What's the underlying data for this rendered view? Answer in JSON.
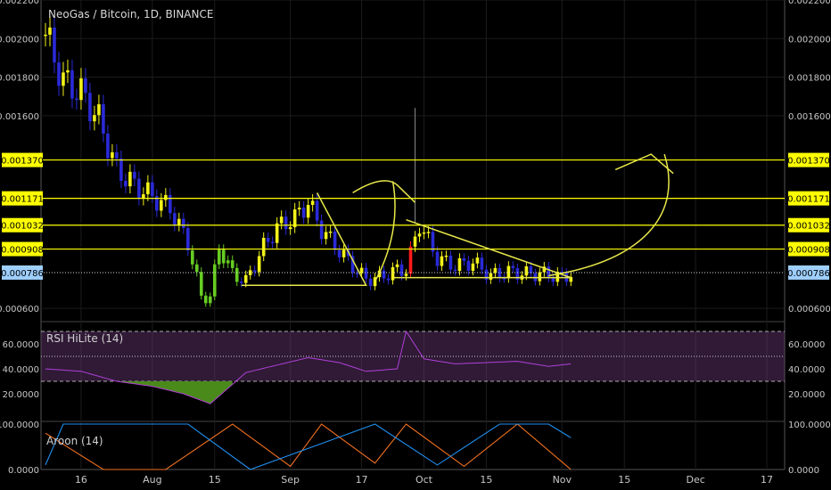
{
  "title": "NeoGas / Bitcoin, 1D, BINANCE",
  "colors": {
    "background": "#000000",
    "grid": "#1c1c1c",
    "bull_candle": "#f2f21a",
    "bear_candle": "#2a2ad8",
    "spike_candle": "#ff1a1a",
    "trend_high": "#66cc22",
    "level_line": "#ffff00",
    "drawing": "#e8e84a",
    "rsi_band": "#6a3a78",
    "rsi_line": "#b040d8",
    "rsi_fill": "#4a8a1a",
    "aroon_up": "#f07020",
    "aroon_down": "#2090f0",
    "current_price_label": "#9ecfff"
  },
  "price_axis": {
    "ticks": [
      "0.002200",
      "0.002000",
      "0.001800",
      "0.001600",
      "0.000600"
    ],
    "levels": [
      "0.001370",
      "0.001171",
      "0.001032",
      "0.000908"
    ],
    "current": "0.000786"
  },
  "time_axis": [
    "16",
    "Aug",
    "15",
    "Sep",
    "17",
    "Oct",
    "15",
    "Nov",
    "15",
    "Dec",
    "17"
  ],
  "rsi": {
    "label": "RSI HiLite (14)",
    "ticks": [
      "60.0000",
      "40.0000",
      "20.0000"
    ]
  },
  "aroon": {
    "label": "Aroon (14)",
    "ticks": [
      "100.0000",
      "0.0000"
    ]
  },
  "chart_data": {
    "type": "candlestick",
    "title": "NeoGas / Bitcoin, 1D, BINANCE",
    "ylim": [
      0.00055,
      0.0022
    ],
    "x_range": [
      "2018-07-07",
      "2018-12-21"
    ],
    "horizontal_levels": [
      0.00137,
      0.001171,
      0.001032,
      0.000908
    ],
    "current_price": 0.000786,
    "close_series": {
      "x": [
        "2018-07-08",
        "2018-07-12",
        "2018-07-16",
        "2018-07-20",
        "2018-07-24",
        "2018-07-28",
        "2018-08-01",
        "2018-08-05",
        "2018-08-09",
        "2018-08-12",
        "2018-08-14",
        "2018-08-16",
        "2018-08-19",
        "2018-08-22",
        "2018-08-26",
        "2018-08-29",
        "2018-09-02",
        "2018-09-05",
        "2018-09-08",
        "2018-09-12",
        "2018-09-15",
        "2018-09-18",
        "2018-09-21",
        "2018-09-25",
        "2018-09-27",
        "2018-09-30",
        "2018-10-04",
        "2018-10-08",
        "2018-10-12",
        "2018-10-16",
        "2018-10-20",
        "2018-10-24",
        "2018-10-28",
        "2018-11-01",
        "2018-11-03"
      ],
      "y": [
        0.00202,
        0.00178,
        0.00172,
        0.00158,
        0.00132,
        0.00124,
        0.00118,
        0.00112,
        0.00094,
        0.00066,
        0.00066,
        0.00092,
        0.00078,
        0.00074,
        0.00092,
        0.00102,
        0.00107,
        0.00115,
        0.00101,
        0.0009,
        0.00082,
        0.00075,
        0.00076,
        0.0008,
        0.0008,
        0.00104,
        0.00086,
        0.00082,
        0.00084,
        0.00077,
        0.00079,
        0.00078,
        0.00078,
        0.00076,
        0.00078
      ]
    },
    "rsi_series": {
      "name": "RSI HiLite (14)",
      "ylim": [
        0,
        75
      ],
      "band": [
        30,
        70
      ],
      "x": [
        "2018-07-08",
        "2018-07-16",
        "2018-07-24",
        "2018-08-01",
        "2018-08-08",
        "2018-08-14",
        "2018-08-22",
        "2018-08-29",
        "2018-09-05",
        "2018-09-12",
        "2018-09-18",
        "2018-09-25",
        "2018-09-27",
        "2018-10-01",
        "2018-10-08",
        "2018-10-15",
        "2018-10-22",
        "2018-10-29",
        "2018-11-03"
      ],
      "y": [
        40,
        38,
        30,
        26,
        20,
        12,
        37,
        43,
        49,
        45,
        38,
        40,
        70,
        48,
        44,
        45,
        46,
        42,
        44
      ]
    },
    "aroon_series": [
      {
        "name": "Aroon Up",
        "ylim": [
          0,
          100
        ],
        "x": [
          "2018-07-08",
          "2018-07-21",
          "2018-07-22",
          "2018-08-04",
          "2018-08-19",
          "2018-09-01",
          "2018-09-08",
          "2018-09-20",
          "2018-09-27",
          "2018-10-10",
          "2018-10-22",
          "2018-11-03"
        ],
        "y": [
          80,
          0,
          0,
          0,
          100,
          7,
          100,
          14,
          100,
          7,
          100,
          0
        ]
      },
      {
        "name": "Aroon Down",
        "ylim": [
          0,
          100
        ],
        "x": [
          "2018-07-08",
          "2018-07-12",
          "2018-07-26",
          "2018-08-09",
          "2018-08-23",
          "2018-09-06",
          "2018-09-20",
          "2018-10-04",
          "2018-10-18",
          "2018-10-29",
          "2018-11-03"
        ],
        "y": [
          10,
          100,
          100,
          100,
          0,
          50,
          100,
          10,
          100,
          100,
          70
        ]
      }
    ]
  }
}
